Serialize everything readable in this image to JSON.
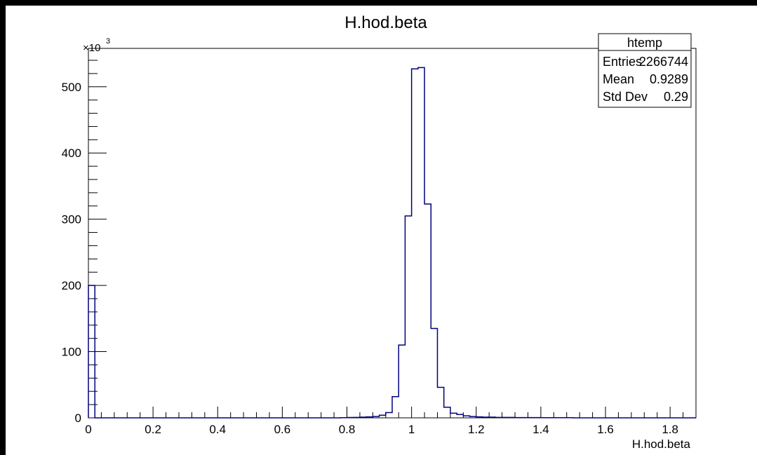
{
  "chart_data": {
    "type": "histogram",
    "title": "H.hod.beta",
    "xlabel": "H.hod.beta",
    "ylabel": "",
    "y_multiplier_label": "×10",
    "y_multiplier_exponent": "3",
    "xlim": [
      0,
      1.88
    ],
    "ylim": [
      0,
      558
    ],
    "x_ticks": [
      0,
      0.2,
      0.4,
      0.6,
      0.8,
      1,
      1.2,
      1.4,
      1.6,
      1.8
    ],
    "x_tick_labels": [
      "0",
      "0.2",
      "0.4",
      "0.6",
      "0.8",
      "1",
      "1.2",
      "1.4",
      "1.6",
      "1.8"
    ],
    "y_ticks": [
      0,
      100,
      200,
      300,
      400,
      500
    ],
    "y_tick_labels": [
      "0",
      "100",
      "200",
      "300",
      "400",
      "500"
    ],
    "bin_width": 0.02,
    "bins": [
      {
        "x0": 0.0,
        "x1": 0.02,
        "value": 200
      },
      {
        "x0": 0.02,
        "x1": 0.78,
        "value": 0
      },
      {
        "x0": 0.78,
        "x1": 0.8,
        "value": 0.3
      },
      {
        "x0": 0.8,
        "x1": 0.82,
        "value": 0.5
      },
      {
        "x0": 0.82,
        "x1": 0.84,
        "value": 0.7
      },
      {
        "x0": 0.84,
        "x1": 0.86,
        "value": 1
      },
      {
        "x0": 0.86,
        "x1": 0.88,
        "value": 1.5
      },
      {
        "x0": 0.88,
        "x1": 0.9,
        "value": 2
      },
      {
        "x0": 0.9,
        "x1": 0.92,
        "value": 4
      },
      {
        "x0": 0.92,
        "x1": 0.94,
        "value": 8
      },
      {
        "x0": 0.94,
        "x1": 0.96,
        "value": 32
      },
      {
        "x0": 0.96,
        "x1": 0.98,
        "value": 110
      },
      {
        "x0": 0.98,
        "x1": 1.0,
        "value": 305
      },
      {
        "x0": 1.0,
        "x1": 1.02,
        "value": 527
      },
      {
        "x0": 1.02,
        "x1": 1.04,
        "value": 529
      },
      {
        "x0": 1.04,
        "x1": 1.06,
        "value": 323
      },
      {
        "x0": 1.06,
        "x1": 1.08,
        "value": 135
      },
      {
        "x0": 1.08,
        "x1": 1.1,
        "value": 46
      },
      {
        "x0": 1.1,
        "x1": 1.12,
        "value": 16
      },
      {
        "x0": 1.12,
        "x1": 1.14,
        "value": 7
      },
      {
        "x0": 1.14,
        "x1": 1.16,
        "value": 5
      },
      {
        "x0": 1.16,
        "x1": 1.18,
        "value": 3
      },
      {
        "x0": 1.18,
        "x1": 1.2,
        "value": 2
      },
      {
        "x0": 1.2,
        "x1": 1.22,
        "value": 1.5
      },
      {
        "x0": 1.22,
        "x1": 1.26,
        "value": 1
      },
      {
        "x0": 1.26,
        "x1": 1.32,
        "value": 0.7
      },
      {
        "x0": 1.32,
        "x1": 1.4,
        "value": 0.4
      },
      {
        "x0": 1.4,
        "x1": 1.5,
        "value": 0.2
      },
      {
        "x0": 1.5,
        "x1": 1.88,
        "value": 0
      }
    ],
    "line_color": "#00007f",
    "grid": false,
    "stats_box": {
      "title": "htemp",
      "rows": [
        {
          "label": "Entries",
          "value": "2266744"
        },
        {
          "label": "Mean",
          "value": "0.9289"
        },
        {
          "label": "Std Dev",
          "value": "0.29"
        }
      ],
      "placement": "top-right"
    }
  }
}
